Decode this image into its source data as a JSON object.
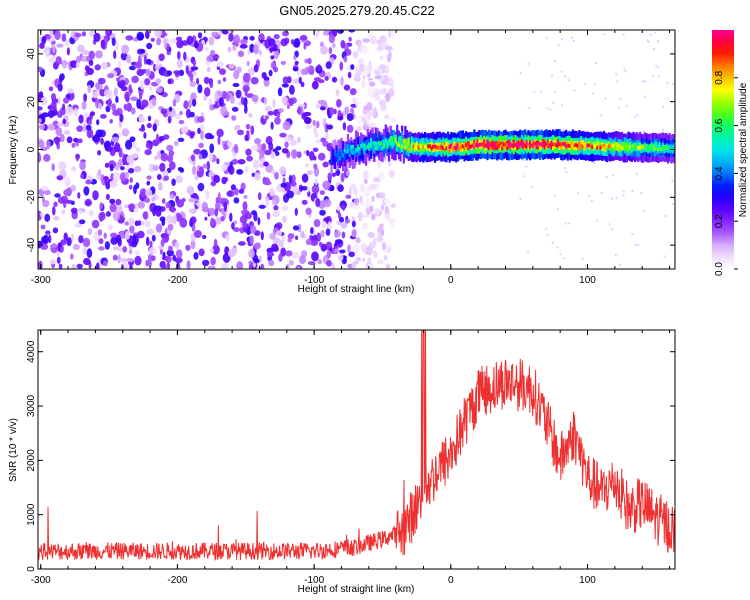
{
  "title": "GN05.2025.279.20.45.C22",
  "chart_data": [
    {
      "type": "heatmap",
      "xlabel": "Height of straight line (km)",
      "ylabel": "Frequency (Hz)",
      "xlim": [
        -302,
        164
      ],
      "ylim": [
        -50,
        50
      ],
      "xticks": [
        -300,
        -200,
        -100,
        0,
        100
      ],
      "yticks": [
        40,
        20,
        0,
        -20,
        -40
      ],
      "colorbar": {
        "label": "Normalized spectral amplitude",
        "range": [
          0,
          1
        ],
        "ticks": [
          "0.0",
          "0.2",
          "0.4",
          "0.6",
          "0.8"
        ],
        "tick_values": [
          0.0,
          0.2,
          0.4,
          0.6,
          0.8
        ],
        "colormap": [
          "#ffffff",
          "#e6c8ff",
          "#9b40ff",
          "#5a00ff",
          "#0000ff",
          "#0096ff",
          "#00e6e6",
          "#00ff80",
          "#64ff00",
          "#ffff00",
          "#ff9600",
          "#ff0000",
          "#ff0096"
        ]
      },
      "noise_region": {
        "x": [
          -302,
          -50
        ],
        "freq": [
          -50,
          50
        ],
        "amplitude": "low (0.05-0.25)"
      },
      "signal_ridge": [
        {
          "x": -88,
          "freq": -4,
          "amp": 0.35
        },
        {
          "x": -80,
          "freq": -2,
          "amp": 0.45
        },
        {
          "x": -70,
          "freq": 0,
          "amp": 0.5
        },
        {
          "x": -55,
          "freq": 2,
          "amp": 0.55
        },
        {
          "x": -45,
          "freq": 3,
          "amp": 0.6
        },
        {
          "x": -35,
          "freq": 2,
          "amp": 0.7
        },
        {
          "x": -25,
          "freq": 1,
          "amp": 0.8
        },
        {
          "x": -10,
          "freq": 1,
          "amp": 0.9
        },
        {
          "x": 0,
          "freq": 1,
          "amp": 0.9
        },
        {
          "x": 20,
          "freq": 2,
          "amp": 1.0
        },
        {
          "x": 50,
          "freq": 2,
          "amp": 1.0
        },
        {
          "x": 80,
          "freq": 2,
          "amp": 0.95
        },
        {
          "x": 100,
          "freq": 1.5,
          "amp": 0.85
        },
        {
          "x": 130,
          "freq": 1,
          "amp": 0.7
        },
        {
          "x": 164,
          "freq": 0.5,
          "amp": 0.55
        }
      ]
    },
    {
      "type": "line",
      "xlabel": "Height of straight line (km)",
      "ylabel": "SNR (10 * v/v)",
      "xlim": [
        -302,
        164
      ],
      "ylim": [
        0,
        4400
      ],
      "xticks": [
        -300,
        -200,
        -100,
        0,
        100
      ],
      "yticks": [
        0,
        1000,
        2000,
        3000,
        4000
      ],
      "color": "#ee3030",
      "series_envelope": {
        "x": [
          -302,
          -250,
          -200,
          -150,
          -100,
          -70,
          -50,
          -35,
          -28,
          -20,
          -10,
          0,
          10,
          20,
          30,
          40,
          50,
          60,
          70,
          80,
          90,
          100,
          110,
          120,
          130,
          140,
          150,
          164
        ],
        "y": [
          320,
          330,
          330,
          330,
          330,
          400,
          550,
          700,
          1000,
          1400,
          1800,
          2100,
          2700,
          3200,
          3350,
          3450,
          3400,
          3300,
          2700,
          2000,
          2500,
          1700,
          1400,
          1600,
          1100,
          1200,
          950,
          700
        ]
      }
    }
  ]
}
